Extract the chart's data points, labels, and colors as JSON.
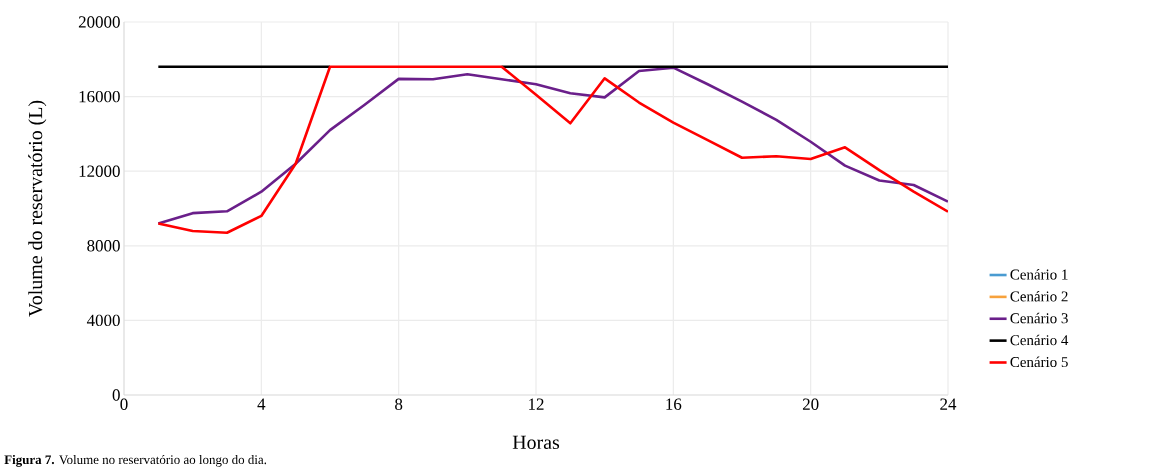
{
  "chart_data": {
    "type": "line",
    "xlabel": "Horas",
    "ylabel": "Volume do reservatório (L)",
    "annotations": [
      "**Figura 7.** Volume no reservatório ao longo do dia."
    ],
    "x": [
      1,
      2,
      3,
      4,
      5,
      6,
      7,
      8,
      9,
      10,
      11,
      12,
      13,
      14,
      15,
      16,
      17,
      18,
      19,
      20,
      21,
      22,
      23,
      24
    ],
    "series": [
      {
        "name": "Cenário 1",
        "color": "#4a9bd1",
        "values": [
          null,
          null,
          null,
          null,
          null,
          null,
          null,
          null,
          null,
          null,
          null,
          null,
          null,
          null,
          null,
          null,
          null,
          null,
          null,
          null,
          null,
          null,
          null,
          null
        ]
      },
      {
        "name": "Cenário 2",
        "color": "#f7a23c",
        "values": [
          null,
          null,
          null,
          null,
          null,
          null,
          null,
          null,
          null,
          null,
          null,
          null,
          null,
          null,
          null,
          null,
          null,
          null,
          null,
          null,
          null,
          null,
          null,
          null
        ]
      },
      {
        "name": "Cenário 3",
        "color": "#6a1f8a",
        "values": [
          9200,
          9750,
          9850,
          10900,
          12400,
          14200,
          15550,
          16950,
          16930,
          17200,
          16930,
          16660,
          16180,
          15960,
          17370,
          17550,
          16660,
          15730,
          14750,
          13580,
          12300,
          11500,
          11260,
          10370
        ]
      },
      {
        "name": "Cenário 4",
        "color": "#000000",
        "values": [
          17600,
          17600,
          17600,
          17600,
          17600,
          17600,
          null,
          null,
          null,
          null,
          17600,
          17600,
          17600,
          17600,
          17600,
          17600,
          17600,
          17600,
          17600,
          17600,
          17600,
          17600,
          17600,
          17600
        ]
      },
      {
        "name": "Cenário 5",
        "color": "#ff0000",
        "values": [
          9200,
          8790,
          8700,
          9600,
          12400,
          17600,
          17600,
          17600,
          17600,
          17600,
          17600,
          16100,
          14570,
          16980,
          15680,
          14600,
          13670,
          12720,
          12800,
          12650,
          13280,
          12060,
          10900,
          9830
        ]
      }
    ],
    "xlim": [
      0,
      24
    ],
    "xticks": [
      0,
      4,
      8,
      12,
      16,
      20,
      24
    ],
    "ylim": [
      0,
      20000
    ],
    "yticks": [
      0,
      4000,
      8000,
      12000,
      16000,
      20000
    ],
    "grid": true,
    "legend": "right",
    "marker": "none",
    "line_style": "solid"
  }
}
